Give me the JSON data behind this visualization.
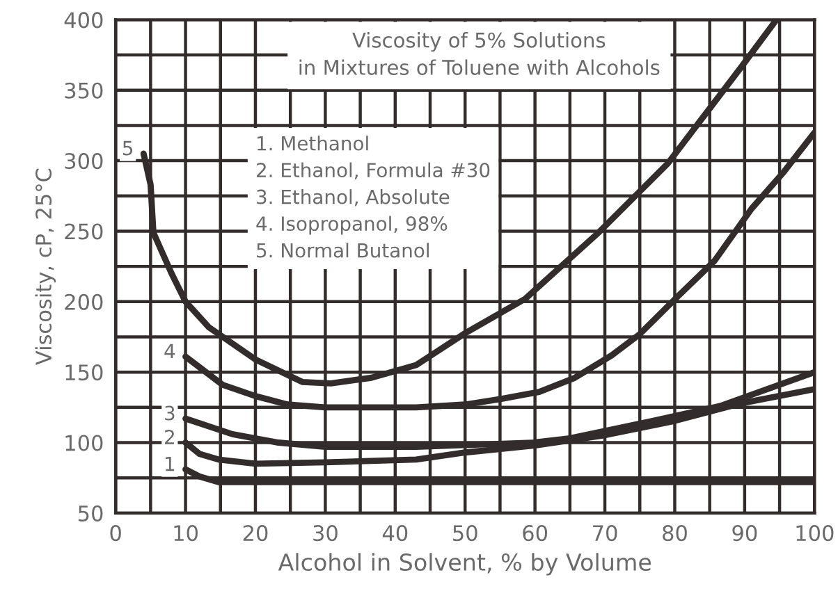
{
  "chart_data": {
    "type": "line",
    "title": "Viscosity of 5% Solutions\nin Mixtures of Toluene with Alcohols",
    "xlabel": "Alcohol in Solvent, % by Volume",
    "ylabel": "Viscosity, cP, 25°C",
    "xlim": [
      0,
      100
    ],
    "ylim": [
      50,
      400
    ],
    "xticks": [
      0,
      {
        "value": 5,
        "label": null
      },
      10,
      {
        "value": 15,
        "label": null
      },
      20,
      {
        "value": 25,
        "label": null
      },
      30,
      {
        "value": 35,
        "label": null
      },
      40,
      {
        "value": 45,
        "label": null
      },
      50,
      {
        "value": 55,
        "label": null
      },
      60,
      {
        "value": 65,
        "label": null
      },
      70,
      {
        "value": 75,
        "label": null
      },
      80,
      {
        "value": 85,
        "label": null
      },
      90,
      {
        "value": 95,
        "label": null
      },
      100
    ],
    "yticks": [
      50,
      {
        "value": 75,
        "label": null
      },
      100,
      {
        "value": 125,
        "label": null
      },
      150,
      {
        "value": 175,
        "label": null
      },
      200,
      {
        "value": 225,
        "label": null
      },
      250,
      {
        "value": 275,
        "label": null
      },
      300,
      {
        "value": 325,
        "label": null
      },
      350,
      {
        "value": 375,
        "label": null
      },
      400
    ],
    "grid": true,
    "marker": "none",
    "line_style": "solid",
    "series": [
      {
        "name": "1",
        "color": "#332c2c",
        "x": [
          10,
          12,
          14.7,
          20,
          30,
          50,
          70,
          90,
          100
        ],
        "values": [
          81,
          76,
          72,
          72,
          72,
          72,
          72,
          72,
          72
        ]
      },
      {
        "name": "2",
        "color": "#332c2c",
        "x": [
          10,
          12,
          14.7,
          20,
          30,
          43,
          50,
          60,
          69.7,
          79.6,
          89.6,
          100
        ],
        "values": [
          100,
          92,
          88,
          85,
          86,
          88,
          93,
          98,
          105,
          115,
          128,
          138
        ]
      },
      {
        "name": "3",
        "color": "#332c2c",
        "x": [
          10,
          16.7,
          23.3,
          30,
          43,
          59.8,
          65,
          76.5,
          86.5,
          100
        ],
        "values": [
          117,
          106,
          100,
          97,
          97,
          100,
          103,
          115,
          126,
          150
        ]
      },
      {
        "name": "4",
        "color": "#332c2c",
        "x": [
          10,
          15.3,
          20,
          24.6,
          30,
          43,
          50,
          55.2,
          60.6,
          65.7,
          71,
          75,
          80.5,
          85.7,
          91,
          95.6,
          100
        ],
        "values": [
          161,
          141,
          133,
          127,
          125,
          125,
          127,
          131,
          136,
          146,
          162,
          177,
          204,
          229,
          266,
          292,
          320
        ]
      },
      {
        "name": "5",
        "color": "#332c2c",
        "x": [
          4,
          5,
          5.4,
          8,
          10,
          13.3,
          20,
          26.7,
          30.8,
          36.6,
          43,
          49.8,
          58.6,
          69.1,
          79,
          89.6,
          94.4
        ],
        "values": [
          305,
          283,
          249,
          220,
          200,
          182,
          159,
          143,
          142,
          146,
          155,
          177,
          202,
          249,
          298,
          367,
          399
        ]
      }
    ],
    "annotations": [
      "1. Methanol",
      "2. Ethanol, Formula #30",
      "3. Ethanol, Absolute",
      "4. Isopropanol, 98%",
      "5. Normal Butanol"
    ]
  }
}
